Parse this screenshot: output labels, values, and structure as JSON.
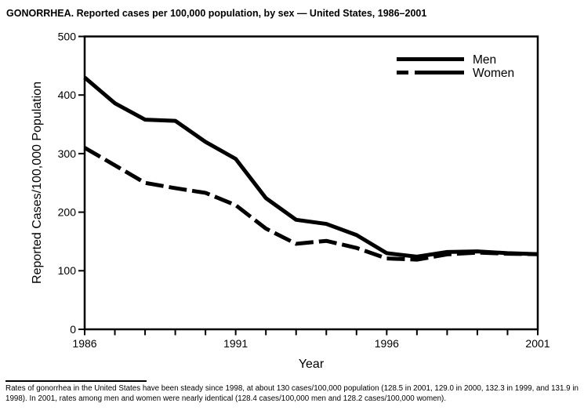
{
  "title": "GONORRHEA. Reported cases per 100,000 population, by sex — United States, 1986–2001",
  "chart_data": {
    "type": "line",
    "x": [
      1986,
      1987,
      1988,
      1989,
      1990,
      1991,
      1992,
      1993,
      1994,
      1995,
      1996,
      1997,
      1998,
      1999,
      2000,
      2001
    ],
    "series": [
      {
        "name": "Men",
        "style": "solid",
        "values": [
          430,
          386,
          358,
          356,
          320,
          291,
          224,
          187,
          180,
          161,
          130,
          124,
          132,
          133,
          130,
          128.4
        ]
      },
      {
        "name": "Women",
        "style": "dashed",
        "values": [
          310,
          280,
          250,
          241,
          233,
          212,
          172,
          146,
          151,
          139,
          121,
          119,
          128,
          131,
          129,
          128.2
        ]
      }
    ],
    "xlabel": "Year",
    "ylabel": "Reported Cases/100,000 Population",
    "ylim": [
      0,
      500
    ],
    "yticks": [
      0,
      100,
      200,
      300,
      400,
      500
    ],
    "xtick_labels": [
      1986,
      1991,
      1996,
      2001
    ],
    "grid": false,
    "legend_position": "top-right",
    "line_color": "#000000",
    "background": "#ffffff"
  },
  "footnote": {
    "text": "Rates of gonorrhea in the United States have been steady since 1998, at about 130 cases/100,000 population (128.5 in 2001, 129.0 in 2000, 132.3 in 1999, and 131.9 in 1998). In 2001, rates among men and women were nearly identical (128.4 cases/100,000 men and 128.2 cases/100,000 women)."
  }
}
